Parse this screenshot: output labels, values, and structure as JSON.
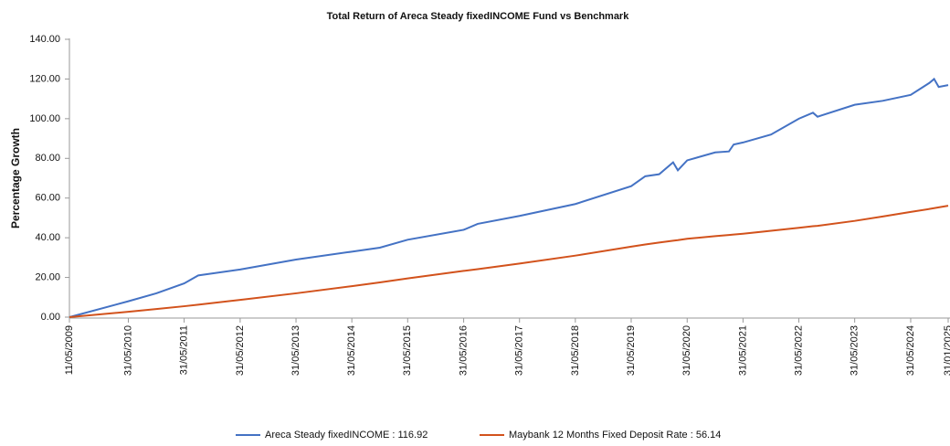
{
  "chart_data": {
    "type": "line",
    "title": "Total Return of Areca Steady fixedINCOME Fund vs Benchmark",
    "y_label": "Percentage Growth",
    "x": [
      "11/05/2009",
      "31/05/2010",
      "30/11/2010",
      "31/05/2011",
      "31/08/2011",
      "31/05/2012",
      "31/05/2013",
      "31/05/2014",
      "30/11/2014",
      "31/05/2015",
      "31/05/2016",
      "31/08/2016",
      "31/05/2017",
      "31/05/2018",
      "31/05/2019",
      "31/08/2019",
      "30/11/2019",
      "29/02/2020",
      "31/03/2020",
      "31/05/2020",
      "30/11/2020",
      "28/02/2021",
      "31/03/2021",
      "31/05/2021",
      "30/11/2021",
      "31/05/2022",
      "31/08/2022",
      "30/09/2022",
      "31/05/2023",
      "30/11/2023",
      "31/05/2024",
      "30/09/2024",
      "31/10/2024",
      "30/11/2024",
      "31/01/2025"
    ],
    "series": [
      {
        "name": "Areca Steady fixedINCOME : 116.92",
        "color": "#4472c4",
        "values": [
          0,
          8,
          12,
          17,
          21,
          24,
          29,
          33,
          35,
          39,
          44,
          47,
          51,
          57,
          66,
          71,
          72,
          78,
          74,
          79,
          83,
          83.5,
          87,
          88,
          92,
          100,
          103,
          101,
          107,
          109,
          112,
          118,
          120,
          116,
          116.92
        ]
      },
      {
        "name": "Maybank 12 Months Fixed Deposit Rate : 56.14",
        "color": "#d2521c",
        "values": [
          0,
          2.7,
          4.1,
          5.5,
          6.3,
          8.7,
          12,
          15.6,
          17.5,
          19.5,
          23.3,
          24.2,
          27,
          31,
          35.5,
          36.6,
          37.6,
          38.5,
          38.8,
          39.5,
          40.8,
          41.4,
          41.6,
          42,
          43.5,
          45,
          45.8,
          46,
          48.5,
          50.7,
          53,
          54.5,
          54.9,
          55.3,
          56.14
        ]
      }
    ],
    "xlim": [
      "11/05/2009",
      "31/01/2025"
    ],
    "xticks": [
      "11/05/2009",
      "31/05/2010",
      "31/05/2011",
      "31/05/2012",
      "31/05/2013",
      "31/05/2014",
      "31/05/2015",
      "31/05/2016",
      "31/05/2017",
      "31/05/2018",
      "31/05/2019",
      "31/05/2020",
      "31/05/2021",
      "31/05/2022",
      "31/05/2023",
      "31/05/2024",
      "31/01/2025"
    ],
    "ylim": [
      0,
      140
    ],
    "yticks": [
      {
        "value": 0,
        "label": "0.00"
      },
      {
        "value": 20,
        "label": "20.00"
      },
      {
        "value": 40,
        "label": "40.00"
      },
      {
        "value": 60,
        "label": "60.00"
      },
      {
        "value": 80,
        "label": "80.00"
      },
      {
        "value": 100,
        "label": "100.00"
      },
      {
        "value": 120,
        "label": "120.00"
      },
      {
        "value": 140,
        "label": "140.00"
      }
    ],
    "grid": false
  }
}
